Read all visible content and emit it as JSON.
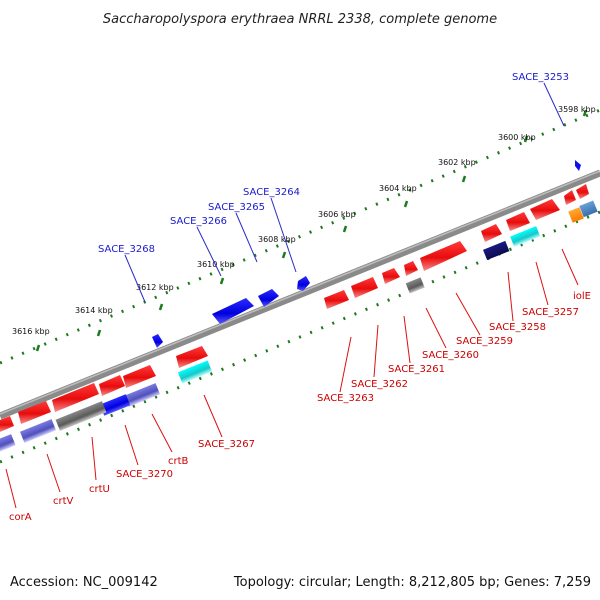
{
  "title": "Saccharopolyspora erythraea NRRL 2338, complete genome",
  "accession": "Accession: NC_009142",
  "topology": "Topology: circular; Length: 8,212,805 bp; Genes: 7,259",
  "colors": {
    "forward_label": "#1a1acc",
    "reverse_label": "#cc0000",
    "tick": "#1e7a1e",
    "backbone": "#777777",
    "red_gene": "#ee1111",
    "blue_gene": "#0a0aee",
    "navy_gene": "#0f0f6a",
    "cyan_gene": "#22cccc",
    "gray_gene": "#707070",
    "purple_gene": "#6666cc",
    "orange_gene": "#ff8800"
  },
  "ticks": [
    {
      "label": "3598 kbp"
    },
    {
      "label": "3600 kbp"
    },
    {
      "label": "3602 kbp"
    },
    {
      "label": "3604 kbp"
    },
    {
      "label": "3606 kbp"
    },
    {
      "label": "3608 kbp"
    },
    {
      "label": "3610 kbp"
    },
    {
      "label": "3612 kbp"
    },
    {
      "label": "3614 kbp"
    },
    {
      "label": "3616 kbp"
    }
  ],
  "labels": [
    {
      "text": "SACE_3253",
      "strand": "forward"
    },
    {
      "text": "SACE_3264",
      "strand": "forward"
    },
    {
      "text": "SACE_3265",
      "strand": "forward"
    },
    {
      "text": "SACE_3266",
      "strand": "forward"
    },
    {
      "text": "SACE_3268",
      "strand": "forward"
    },
    {
      "text": "iolE",
      "strand": "reverse"
    },
    {
      "text": "SACE_3257",
      "strand": "reverse"
    },
    {
      "text": "SACE_3258",
      "strand": "reverse"
    },
    {
      "text": "SACE_3259",
      "strand": "reverse"
    },
    {
      "text": "SACE_3260",
      "strand": "reverse"
    },
    {
      "text": "SACE_3261",
      "strand": "reverse"
    },
    {
      "text": "SACE_3262",
      "strand": "reverse"
    },
    {
      "text": "SACE_3263",
      "strand": "reverse"
    },
    {
      "text": "SACE_3267",
      "strand": "reverse"
    },
    {
      "text": "crtB",
      "strand": "reverse"
    },
    {
      "text": "SACE_3270",
      "strand": "reverse"
    },
    {
      "text": "crtU",
      "strand": "reverse"
    },
    {
      "text": "crtV",
      "strand": "reverse"
    },
    {
      "text": "corA",
      "strand": "reverse"
    }
  ]
}
